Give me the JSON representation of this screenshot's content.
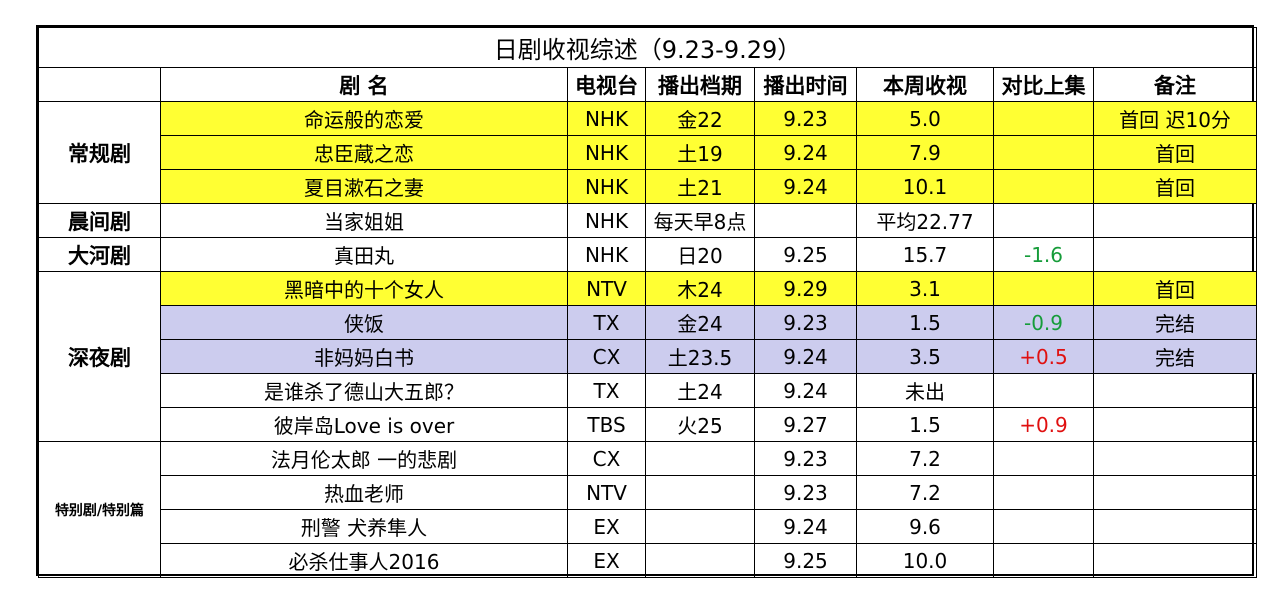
{
  "title": "日剧收视综述（9.23-9.29）",
  "headers": [
    "剧 名",
    "电视台",
    "播出档期",
    "播出时间",
    "本周收视",
    "对比上集",
    "备注"
  ],
  "categories": {
    "regular": "常规剧",
    "morning": "晨间剧",
    "taiga": "大河剧",
    "late": "深夜剧",
    "special": "特别剧/特别篇"
  },
  "rows": [
    {
      "name": "命运般的恋爱",
      "station": "NHK",
      "slot": "金22",
      "airdate": "9.23",
      "rating": "5.0",
      "diff": "",
      "note": "首回 迟10分"
    },
    {
      "name": "忠臣蔵之恋",
      "station": "NHK",
      "slot": "土19",
      "airdate": "9.24",
      "rating": "7.9",
      "diff": "",
      "note": "首回"
    },
    {
      "name": "夏目漱石之妻",
      "station": "NHK",
      "slot": "土21",
      "airdate": "9.24",
      "rating": "10.1",
      "diff": "",
      "note": "首回"
    },
    {
      "name": "当家姐姐",
      "station": "NHK",
      "slot": "每天早8点",
      "airdate": "",
      "rating": "平均22.77",
      "diff": "",
      "note": ""
    },
    {
      "name": "真田丸",
      "station": "NHK",
      "slot": "日20",
      "airdate": "9.25",
      "rating": "15.7",
      "diff": "-1.6",
      "note": ""
    },
    {
      "name": "黑暗中的十个女人",
      "station": "NTV",
      "slot": "木24",
      "airdate": "9.29",
      "rating": "3.1",
      "diff": "",
      "note": "首回"
    },
    {
      "name": "侠饭",
      "station": "TX",
      "slot": "金24",
      "airdate": "9.23",
      "rating": "1.5",
      "diff": "-0.9",
      "note": "完结"
    },
    {
      "name": "非妈妈白书",
      "station": "CX",
      "slot": "土23.5",
      "airdate": "9.24",
      "rating": "3.5",
      "diff": "+0.5",
      "note": "完结"
    },
    {
      "name": "是谁杀了德山大五郎？",
      "station": "TX",
      "slot": "土24",
      "airdate": "9.24",
      "rating": "未出",
      "diff": "",
      "note": ""
    },
    {
      "name": "彼岸岛Love is over",
      "station": "TBS",
      "slot": "火25",
      "airdate": "9.27",
      "rating": "1.5",
      "diff": "+0.9",
      "note": ""
    },
    {
      "name": "法月伦太郎 一的悲剧",
      "station": "CX",
      "slot": "",
      "airdate": "9.23",
      "rating": "7.2",
      "diff": "",
      "note": ""
    },
    {
      "name": "热血老师",
      "station": "NTV",
      "slot": "",
      "airdate": "9.23",
      "rating": "7.2",
      "diff": "",
      "note": ""
    },
    {
      "name": "刑警 犬养隼人",
      "station": "EX",
      "slot": "",
      "airdate": "9.24",
      "rating": "9.6",
      "diff": "",
      "note": ""
    },
    {
      "name": "必杀仕事人2016",
      "station": "EX",
      "slot": "",
      "airdate": "9.25",
      "rating": "10.0",
      "diff": "",
      "note": ""
    }
  ],
  "colors": {
    "highlight_yellow": "#ffff33",
    "highlight_lavender": "#ccccee",
    "positive": "#e01010",
    "negative": "#169c3a"
  }
}
